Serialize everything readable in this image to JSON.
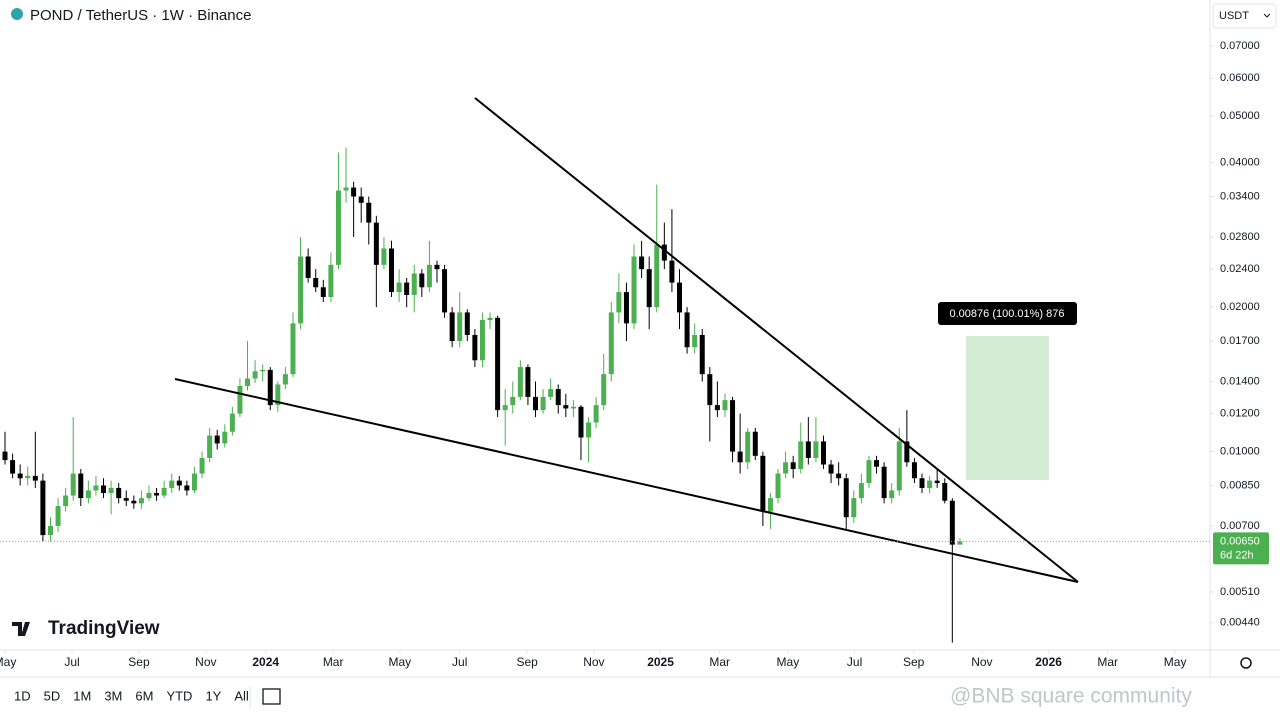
{
  "header": {
    "title": "POND / TetherUS · 1W · Binance",
    "currency": "USDT"
  },
  "chart_data": {
    "type": "candlestick",
    "log_scale": true,
    "grid": false,
    "up_color": "#4caf50",
    "down_color": "#000000",
    "open": [
      0.01,
      0.0096,
      0.009,
      0.0088,
      0.0089,
      0.0087,
      0.0067,
      0.007,
      0.0077,
      0.0081,
      0.009,
      0.008,
      0.0083,
      0.0085,
      0.0082,
      0.0084,
      0.008,
      0.0079,
      0.0078,
      0.008,
      0.0082,
      0.0081,
      0.0084,
      0.0087,
      0.0085,
      0.0083,
      0.009,
      0.0097,
      0.0108,
      0.0104,
      0.011,
      0.012,
      0.0137,
      0.0142,
      0.0147,
      0.0148,
      0.0125,
      0.0138,
      0.0145,
      0.0185,
      0.0255,
      0.023,
      0.022,
      0.021,
      0.0245,
      0.035,
      0.0355,
      0.034,
      0.033,
      0.03,
      0.0245,
      0.0265,
      0.0215,
      0.0225,
      0.0212,
      0.0235,
      0.022,
      0.0245,
      0.024,
      0.0195,
      0.017,
      0.0195,
      0.0175,
      0.0155,
      0.0188,
      0.019,
      0.0122,
      0.0125,
      0.013,
      0.015,
      0.013,
      0.0122,
      0.013,
      0.0135,
      0.0125,
      0.0123,
      0.0124,
      0.0107,
      0.0115,
      0.0125,
      0.0145,
      0.0195,
      0.0215,
      0.0185,
      0.0255,
      0.024,
      0.02,
      0.027,
      0.025,
      0.0225,
      0.0195,
      0.0165,
      0.0175,
      0.0145,
      0.0125,
      0.0122,
      0.0128,
      0.01,
      0.0095,
      0.011,
      0.0098,
      0.0075,
      0.008,
      0.009,
      0.0095,
      0.0092,
      0.0105,
      0.0097,
      0.0105,
      0.0094,
      0.009,
      0.0088,
      0.0073,
      0.008,
      0.0086,
      0.0096,
      0.0093,
      0.008,
      0.0083,
      0.0105,
      0.0095,
      0.0088,
      0.0084,
      0.0087,
      0.0086,
      0.0079,
      0.0064
    ],
    "high": [
      0.011,
      0.0099,
      0.0094,
      0.0093,
      0.011,
      0.009,
      0.0073,
      0.008,
      0.0084,
      0.0118,
      0.0092,
      0.0087,
      0.0089,
      0.0088,
      0.0087,
      0.0086,
      0.0083,
      0.0081,
      0.0083,
      0.0085,
      0.0084,
      0.0087,
      0.009,
      0.0089,
      0.0087,
      0.0093,
      0.01,
      0.0112,
      0.0111,
      0.0114,
      0.0124,
      0.0142,
      0.017,
      0.0155,
      0.0152,
      0.015,
      0.014,
      0.015,
      0.0195,
      0.028,
      0.0265,
      0.024,
      0.0228,
      0.026,
      0.042,
      0.043,
      0.0365,
      0.0355,
      0.034,
      0.031,
      0.028,
      0.0275,
      0.024,
      0.023,
      0.0245,
      0.024,
      0.0275,
      0.025,
      0.0245,
      0.02,
      0.0215,
      0.0198,
      0.018,
      0.0195,
      0.0195,
      0.0192,
      0.0135,
      0.014,
      0.0155,
      0.0152,
      0.014,
      0.0135,
      0.0142,
      0.0138,
      0.0132,
      0.0128,
      0.0125,
      0.0118,
      0.013,
      0.016,
      0.0205,
      0.0235,
      0.0225,
      0.027,
      0.0275,
      0.0255,
      0.036,
      0.03,
      0.032,
      0.024,
      0.02,
      0.0185,
      0.018,
      0.015,
      0.014,
      0.0132,
      0.013,
      0.012,
      0.0112,
      0.0112,
      0.01,
      0.0082,
      0.0092,
      0.01,
      0.0098,
      0.0115,
      0.0118,
      0.0118,
      0.0108,
      0.0096,
      0.0095,
      0.009,
      0.0083,
      0.009,
      0.0098,
      0.0098,
      0.0095,
      0.0086,
      0.0112,
      0.0122,
      0.0097,
      0.009,
      0.0089,
      0.0092,
      0.0088,
      0.008,
      0.0066
    ],
    "low": [
      0.0094,
      0.0088,
      0.0085,
      0.0085,
      0.0084,
      0.0065,
      0.0065,
      0.0068,
      0.0075,
      0.0079,
      0.0077,
      0.0078,
      0.0081,
      0.008,
      0.0074,
      0.0078,
      0.0077,
      0.0076,
      0.0076,
      0.0079,
      0.0079,
      0.008,
      0.0082,
      0.0083,
      0.0081,
      0.0082,
      0.0088,
      0.0095,
      0.0101,
      0.0102,
      0.0108,
      0.0118,
      0.0134,
      0.0139,
      0.014,
      0.0122,
      0.0121,
      0.0135,
      0.0143,
      0.018,
      0.0225,
      0.0215,
      0.0205,
      0.0205,
      0.024,
      0.033,
      0.028,
      0.03,
      0.027,
      0.02,
      0.024,
      0.021,
      0.0205,
      0.02,
      0.0195,
      0.021,
      0.0215,
      0.0225,
      0.019,
      0.0165,
      0.0165,
      0.017,
      0.015,
      0.015,
      0.018,
      0.0118,
      0.0103,
      0.012,
      0.0128,
      0.0125,
      0.0118,
      0.012,
      0.0128,
      0.012,
      0.0118,
      0.0118,
      0.0096,
      0.0095,
      0.0112,
      0.0122,
      0.014,
      0.0185,
      0.017,
      0.018,
      0.023,
      0.018,
      0.0195,
      0.024,
      0.0215,
      0.018,
      0.016,
      0.016,
      0.014,
      0.0105,
      0.0118,
      0.0118,
      0.0095,
      0.009,
      0.0092,
      0.0096,
      0.007,
      0.0069,
      0.0078,
      0.0088,
      0.0088,
      0.009,
      0.0094,
      0.0095,
      0.0092,
      0.0086,
      0.0085,
      0.0069,
      0.0071,
      0.0078,
      0.0084,
      0.009,
      0.0078,
      0.0078,
      0.0081,
      0.0093,
      0.0086,
      0.0082,
      0.0082,
      0.0084,
      0.0078,
      0.004,
      0.0064
    ],
    "close": [
      0.0096,
      0.009,
      0.0088,
      0.0089,
      0.0087,
      0.0067,
      0.007,
      0.0077,
      0.0081,
      0.009,
      0.008,
      0.0083,
      0.0085,
      0.0082,
      0.0084,
      0.008,
      0.0079,
      0.0078,
      0.008,
      0.0082,
      0.0081,
      0.0084,
      0.0087,
      0.0085,
      0.0083,
      0.009,
      0.0097,
      0.0108,
      0.0104,
      0.011,
      0.012,
      0.0137,
      0.0142,
      0.0147,
      0.0148,
      0.0125,
      0.0138,
      0.0145,
      0.0185,
      0.0255,
      0.023,
      0.022,
      0.021,
      0.0245,
      0.035,
      0.0355,
      0.034,
      0.033,
      0.03,
      0.0245,
      0.0265,
      0.0215,
      0.0225,
      0.0212,
      0.0235,
      0.022,
      0.0245,
      0.024,
      0.0195,
      0.017,
      0.0195,
      0.0175,
      0.0155,
      0.0188,
      0.019,
      0.0122,
      0.0125,
      0.013,
      0.015,
      0.013,
      0.0122,
      0.013,
      0.0135,
      0.0125,
      0.0123,
      0.0124,
      0.0107,
      0.0115,
      0.0125,
      0.0145,
      0.0195,
      0.0215,
      0.0185,
      0.0255,
      0.024,
      0.02,
      0.027,
      0.025,
      0.0225,
      0.0195,
      0.0165,
      0.0175,
      0.0145,
      0.0125,
      0.0122,
      0.0128,
      0.01,
      0.0095,
      0.011,
      0.0098,
      0.0075,
      0.008,
      0.009,
      0.0095,
      0.0092,
      0.0105,
      0.0097,
      0.0105,
      0.0094,
      0.009,
      0.0088,
      0.0073,
      0.008,
      0.0086,
      0.0096,
      0.0093,
      0.008,
      0.0083,
      0.0105,
      0.0095,
      0.0088,
      0.0084,
      0.0087,
      0.0086,
      0.0079,
      0.0064,
      0.0065
    ],
    "xlim": [
      -0.66,
      159.0
    ],
    "xticks": [
      {
        "value": 0,
        "label": "May"
      },
      {
        "value": 8.84,
        "label": "Jul"
      },
      {
        "value": 17.68,
        "label": "Sep"
      },
      {
        "value": 26.5,
        "label": "Nov"
      },
      {
        "value": 34.4,
        "label": "2024"
      },
      {
        "value": 43.3,
        "label": "Mar"
      },
      {
        "value": 52.1,
        "label": "May"
      },
      {
        "value": 60.0,
        "label": "Jul"
      },
      {
        "value": 68.9,
        "label": "Sep"
      },
      {
        "value": 77.7,
        "label": "Nov"
      },
      {
        "value": 86.5,
        "label": "2025"
      },
      {
        "value": 94.3,
        "label": "Mar"
      },
      {
        "value": 103.3,
        "label": "May"
      },
      {
        "value": 112.1,
        "label": "Jul"
      },
      {
        "value": 119.9,
        "label": "Sep"
      },
      {
        "value": 128.9,
        "label": "Nov"
      },
      {
        "value": 137.7,
        "label": "2026"
      },
      {
        "value": 145.5,
        "label": "Mar"
      },
      {
        "value": 154.4,
        "label": "May"
      }
    ],
    "ylim": [
      0.00386,
      0.0873
    ],
    "yticks": [
      {
        "value": 0.07,
        "label": "0.07000"
      },
      {
        "value": 0.06,
        "label": "0.06000"
      },
      {
        "value": 0.05,
        "label": "0.05000"
      },
      {
        "value": 0.04,
        "label": "0.04000"
      },
      {
        "value": 0.034,
        "label": "0.03400"
      },
      {
        "value": 0.028,
        "label": "0.02800"
      },
      {
        "value": 0.024,
        "label": "0.02400"
      },
      {
        "value": 0.02,
        "label": "0.02000"
      },
      {
        "value": 0.017,
        "label": "0.01700"
      },
      {
        "value": 0.014,
        "label": "0.01400"
      },
      {
        "value": 0.012,
        "label": "0.01200"
      },
      {
        "value": 0.01,
        "label": "0.01000"
      },
      {
        "value": 0.0085,
        "label": "0.00850"
      },
      {
        "value": 0.007,
        "label": "0.00700"
      },
      {
        "value": 0.0051,
        "label": "0.00510"
      },
      {
        "value": 0.0044,
        "label": "0.00440"
      }
    ],
    "last_price": {
      "value": 0.0065,
      "label": "0.00650"
    },
    "countdown": "6d 22h",
    "annotation": "0.00876 (100.01%) 876"
  },
  "logo": "TradingView",
  "ranges": [
    "1D",
    "5D",
    "1M",
    "3M",
    "6M",
    "YTD",
    "1Y",
    "All"
  ],
  "watermark": "@BNB square community"
}
